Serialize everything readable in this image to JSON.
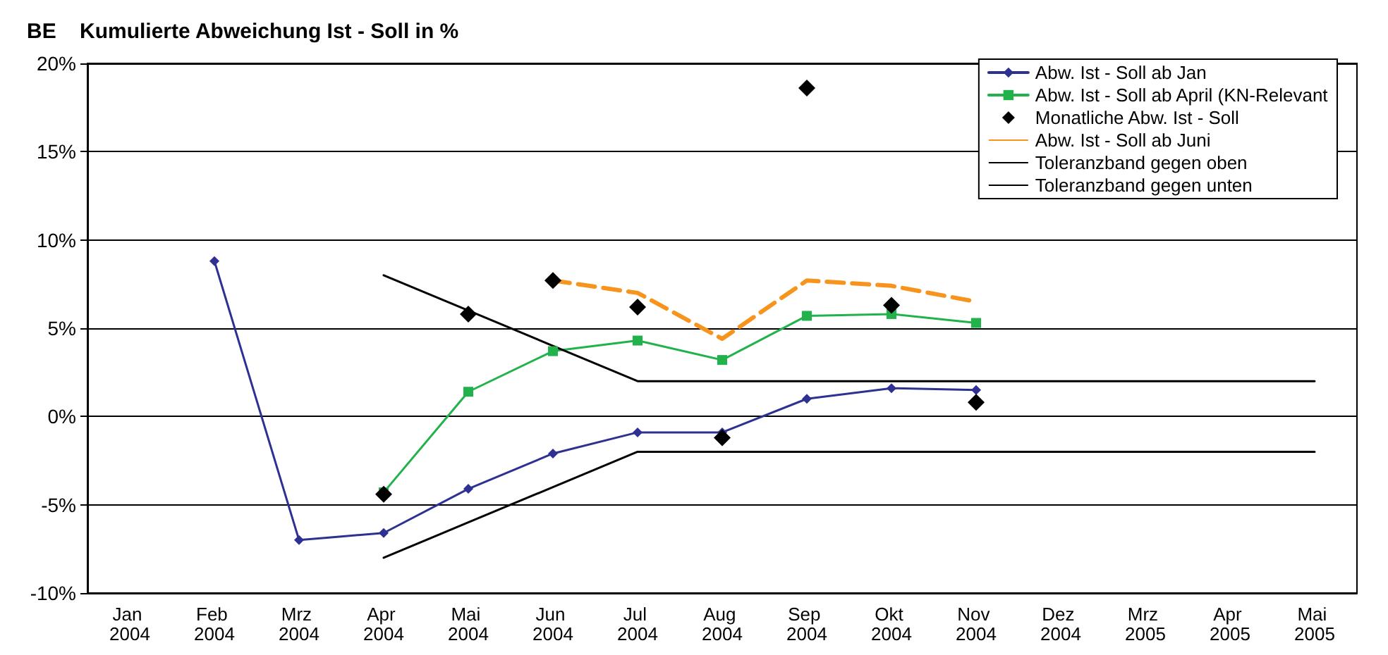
{
  "chart_data": {
    "type": "line",
    "title": "BE    Kumulierte Abweichung Ist - Soll in %",
    "categories": [
      "Jan 2004",
      "Feb 2004",
      "Mrz 2004",
      "Apr 2004",
      "Mai 2004",
      "Jun 2004",
      "Jul 2004",
      "Aug 2004",
      "Sep 2004",
      "Okt 2004",
      "Nov 2004",
      "Dez 2004",
      "Mrz 2005",
      "Apr 2005",
      "Mai 2005"
    ],
    "series": [
      {
        "name": "Abw. Ist - Soll ab Jan",
        "color": "#2e3192",
        "marker": "diamond",
        "values": [
          null,
          8.8,
          -7.0,
          -6.6,
          -4.1,
          -2.1,
          -0.9,
          -0.9,
          1.0,
          1.6,
          1.5,
          null,
          null,
          null,
          null
        ]
      },
      {
        "name": "Abw. Ist - Soll ab April (KN-Relevant",
        "color": "#22b24c",
        "marker": "square",
        "values": [
          null,
          null,
          null,
          -4.3,
          1.4,
          3.7,
          4.3,
          3.2,
          5.7,
          5.8,
          5.3,
          null,
          null,
          null,
          null
        ]
      },
      {
        "name": "Monatliche Abw. Ist - Soll",
        "type": "scatter",
        "color": "#000000",
        "marker": "diamond",
        "values": [
          null,
          null,
          null,
          -4.4,
          5.8,
          7.7,
          6.2,
          -1.2,
          18.6,
          6.3,
          0.8,
          null,
          null,
          null,
          null
        ]
      },
      {
        "name": "Abw. Ist - Soll ab Juni",
        "color": "#f7941d",
        "marker": "none",
        "line_style": "dashed",
        "values": [
          null,
          null,
          null,
          null,
          null,
          7.7,
          7.0,
          4.4,
          7.7,
          7.4,
          6.5,
          null,
          null,
          null,
          null
        ]
      },
      {
        "name": "Toleranzband gegen oben",
        "color": "#000000",
        "marker": "none",
        "values": [
          null,
          null,
          null,
          8,
          6,
          4,
          2,
          2,
          2,
          2,
          2,
          2,
          2,
          2,
          2
        ]
      },
      {
        "name": "Toleranzband gegen unten",
        "color": "#000000",
        "marker": "none",
        "values": [
          null,
          null,
          null,
          -8,
          -6,
          -4,
          -2,
          -2,
          -2,
          -2,
          -2,
          -2,
          -2,
          -2,
          -2
        ]
      }
    ],
    "ylim": [
      -10,
      20
    ],
    "yticks": [
      {
        "value": -10,
        "label": "-10%"
      },
      {
        "value": -5,
        "label": "-5%"
      },
      {
        "value": 0,
        "label": "0%"
      },
      {
        "value": 5,
        "label": "5%"
      },
      {
        "value": 10,
        "label": "10%"
      },
      {
        "value": 15,
        "label": "15%"
      },
      {
        "value": 20,
        "label": "20%"
      }
    ],
    "grid": "y",
    "legend": "top right"
  }
}
